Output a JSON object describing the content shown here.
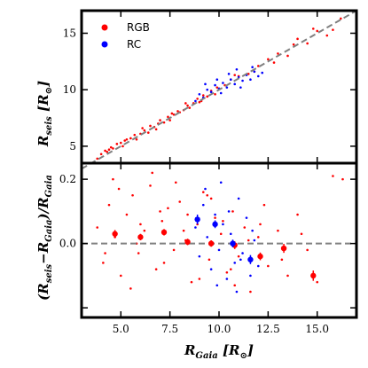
{
  "chart_data": [
    {
      "type": "scatter",
      "panel": "top",
      "xlim": [
        3.0,
        17.0
      ],
      "ylim": [
        3.5,
        17.0
      ],
      "yticks": [
        5,
        10,
        15
      ],
      "xticks": [
        5.0,
        7.5,
        10.0,
        12.5,
        15.0
      ],
      "ylabel": "R_{seis} [R_⊙]",
      "legend": {
        "placement": "top-left",
        "entries": [
          {
            "name": "RGB",
            "color": "#ff0000"
          },
          {
            "name": "RC",
            "color": "#0000ff"
          }
        ]
      },
      "reference_line": {
        "style": "dashed",
        "color": "#808080",
        "x": [
          3.0,
          17.0
        ],
        "y": [
          3.0,
          17.0
        ]
      },
      "series": [
        {
          "name": "RGB",
          "color": "#ff0000",
          "x": [
            3.8,
            4.0,
            4.2,
            4.3,
            4.5,
            4.6,
            4.8,
            5.0,
            5.1,
            5.3,
            5.5,
            5.7,
            5.8,
            6.0,
            6.2,
            6.4,
            6.5,
            6.7,
            6.9,
            7.0,
            7.2,
            7.4,
            7.5,
            7.7,
            7.9,
            8.0,
            8.2,
            8.4,
            8.5,
            8.7,
            8.9,
            9.0,
            9.2,
            9.4,
            9.6,
            9.8,
            10.0,
            10.3,
            10.6,
            11.0,
            11.5,
            12.0,
            12.5,
            13.0,
            13.5,
            14.0,
            14.5,
            15.0,
            15.5,
            16.2,
            4.4,
            5.2,
            6.1,
            6.8,
            7.6,
            8.3,
            9.1,
            9.9,
            10.8,
            11.8,
            12.8,
            13.8,
            14.8,
            15.8
          ],
          "y": [
            3.9,
            4.3,
            4.6,
            4.5,
            4.9,
            4.8,
            5.2,
            5.3,
            5.0,
            5.6,
            5.7,
            6.0,
            5.6,
            6.1,
            6.4,
            6.2,
            6.8,
            6.7,
            7.0,
            7.3,
            7.1,
            7.6,
            7.3,
            7.8,
            8.1,
            8.0,
            8.2,
            8.6,
            8.4,
            8.8,
            9.2,
            8.9,
            9.5,
            9.4,
            9.9,
            9.6,
            10.1,
            10.4,
            10.9,
            11.2,
            11.4,
            12.1,
            12.7,
            13.2,
            13.0,
            14.5,
            14.1,
            15.2,
            14.8,
            16.3,
            4.7,
            5.5,
            6.6,
            6.5,
            7.9,
            8.8,
            9.0,
            10.2,
            11.3,
            11.6,
            12.4,
            14.0,
            15.4,
            15.3
          ]
        },
        {
          "name": "RC",
          "color": "#0000ff",
          "x": [
            8.8,
            9.0,
            9.2,
            9.4,
            9.6,
            9.8,
            10.0,
            10.2,
            10.4,
            10.6,
            10.8,
            11.0,
            11.2,
            11.4,
            11.6,
            11.8,
            12.0,
            9.3,
            9.9,
            10.5,
            11.1,
            11.7,
            12.2,
            10.1,
            10.9
          ],
          "y": [
            9.0,
            9.6,
            9.3,
            10.0,
            9.8,
            10.4,
            10.1,
            10.6,
            10.2,
            10.9,
            10.5,
            11.1,
            10.8,
            11.3,
            10.9,
            11.6,
            11.2,
            10.5,
            10.9,
            11.4,
            10.2,
            12.0,
            11.5,
            9.7,
            11.8
          ]
        }
      ]
    },
    {
      "type": "scatter",
      "panel": "bottom",
      "xlim": [
        3.0,
        17.0
      ],
      "ylim": [
        -0.23,
        0.25
      ],
      "yticks": [
        0.2,
        0.0,
        -0.2
      ],
      "yticklabels": [
        "0.2",
        "0.0",
        ""
      ],
      "xticks": [
        5.0,
        7.5,
        10.0,
        12.5,
        15.0
      ],
      "xticklabels": [
        "5.0",
        "7.5",
        "10.0",
        "12.5",
        "15.0"
      ],
      "xlabel": "R_{Gaia} [R_⊙]",
      "ylabel": "(R_{seis}−R_{Gaia})/R_{Gaia}",
      "reference_line": {
        "style": "dashed",
        "color": "#808080",
        "y": 0.0
      },
      "series": [
        {
          "name": "RGB",
          "color": "#ff0000",
          "x": [
            3.8,
            4.1,
            4.4,
            4.7,
            5.0,
            5.3,
            5.6,
            5.9,
            6.2,
            6.5,
            6.8,
            7.1,
            7.4,
            7.7,
            8.0,
            8.3,
            8.6,
            8.9,
            9.2,
            9.5,
            9.8,
            10.1,
            10.4,
            10.7,
            11.0,
            11.3,
            11.6,
            12.0,
            12.5,
            13.0,
            13.5,
            14.0,
            14.5,
            15.0,
            15.8,
            16.3,
            4.2,
            4.9,
            5.5,
            6.0,
            6.6,
            7.2,
            7.8,
            8.4,
            9.0,
            9.6,
            10.2,
            10.8,
            11.5,
            12.3,
            13.2,
            4.6,
            5.8,
            7.0,
            8.2,
            9.4,
            10.6,
            12.1,
            14.2
          ],
          "y": [
            0.05,
            -0.06,
            0.12,
            0.02,
            -0.1,
            0.09,
            0.15,
            -0.03,
            0.04,
            0.18,
            -0.08,
            0.07,
            0.11,
            -0.02,
            0.13,
            0.01,
            -0.12,
            0.06,
            0.16,
            -0.05,
            0.08,
            0.03,
            -0.09,
            0.1,
            -0.04,
            0.05,
            -0.15,
            0.02,
            -0.07,
            0.04,
            -0.1,
            0.09,
            -0.02,
            -0.12,
            0.21,
            0.2,
            -0.03,
            0.17,
            -0.14,
            0.06,
            0.22,
            -0.06,
            0.19,
            0.09,
            -0.11,
            0.14,
            0.07,
            -0.13,
            0.01,
            0.12,
            -0.05,
            0.2,
            0.0,
            0.1,
            0.04,
            0.15,
            -0.08,
            0.06,
            0.03
          ]
        },
        {
          "name": "RC",
          "color": "#0000ff",
          "x": [
            8.8,
            9.0,
            9.2,
            9.4,
            9.6,
            9.8,
            10.0,
            10.2,
            10.4,
            10.6,
            10.8,
            11.0,
            11.2,
            11.4,
            11.6,
            11.8,
            12.0,
            9.3,
            9.9,
            10.5,
            11.1,
            11.7,
            10.1,
            10.9,
            9.7
          ],
          "y": [
            0.05,
            -0.04,
            0.12,
            0.02,
            -0.08,
            0.09,
            -0.02,
            0.06,
            -0.11,
            0.03,
            -0.06,
            0.14,
            -0.03,
            0.08,
            -0.1,
            0.01,
            -0.07,
            0.17,
            -0.13,
            0.1,
            -0.05,
            0.04,
            0.19,
            -0.15,
            0.0
          ]
        },
        {
          "name": "RGB binned",
          "color": "#ff0000",
          "x": [
            4.7,
            6.0,
            7.2,
            8.4,
            9.6,
            10.8,
            12.1,
            13.3,
            14.8
          ],
          "y": [
            0.03,
            0.02,
            0.035,
            0.005,
            0.0,
            -0.005,
            -0.04,
            -0.015,
            -0.1
          ],
          "err": [
            0.012,
            0.01,
            0.01,
            0.01,
            0.01,
            0.012,
            0.012,
            0.014,
            0.016
          ]
        },
        {
          "name": "RC binned",
          "color": "#0000ff",
          "x": [
            8.9,
            9.8,
            10.7,
            11.6
          ],
          "y": [
            0.075,
            0.06,
            0.0,
            -0.05
          ],
          "err": [
            0.015,
            0.012,
            0.012,
            0.014
          ]
        }
      ]
    }
  ]
}
